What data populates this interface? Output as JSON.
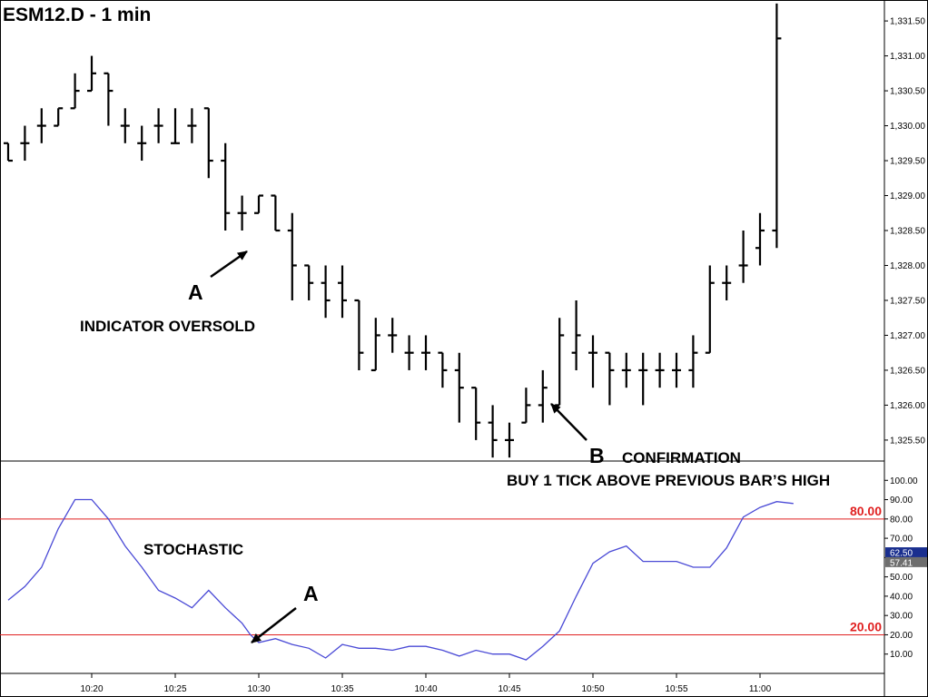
{
  "title": "ESM12.D - 1 min",
  "colors": {
    "price_bars": "#000000",
    "stochastic_line": "#4a4ad6",
    "level_lines": "#e02020",
    "tag_blue": "#1a2f8f",
    "tag_gray": "#6e6e6e"
  },
  "chart_data": [
    {
      "type": "ohlc",
      "name": "price",
      "ylim": [
        1325.2,
        1331.8
      ],
      "ticks": [
        "1,325.50",
        "1,326.00",
        "1,326.50",
        "1,327.00",
        "1,327.50",
        "1,328.00",
        "1,328.50",
        "1,329.00",
        "1,329.50",
        "1,330.00",
        "1,330.50",
        "1,331.00",
        "1,331.50"
      ],
      "tick_values": [
        1325.5,
        1326.0,
        1326.5,
        1327.0,
        1327.5,
        1328.0,
        1328.5,
        1329.0,
        1329.5,
        1330.0,
        1330.5,
        1331.0,
        1331.5
      ],
      "x_labels": [
        "10:20",
        "10:25",
        "10:30",
        "10:35",
        "10:40",
        "10:45",
        "10:50",
        "10:55",
        "11:00"
      ],
      "x_label_values": [
        20,
        25,
        30,
        35,
        40,
        45,
        50,
        55,
        60
      ],
      "bars": [
        {
          "t": 15,
          "o": 1329.75,
          "h": 1329.75,
          "l": 1329.5,
          "c": 1329.5
        },
        {
          "t": 16,
          "o": 1329.75,
          "h": 1330.0,
          "l": 1329.5,
          "c": 1329.75
        },
        {
          "t": 17,
          "o": 1330.0,
          "h": 1330.25,
          "l": 1329.75,
          "c": 1330.0
        },
        {
          "t": 18,
          "o": 1330.0,
          "h": 1330.25,
          "l": 1330.0,
          "c": 1330.25
        },
        {
          "t": 19,
          "o": 1330.25,
          "h": 1330.75,
          "l": 1330.25,
          "c": 1330.5
        },
        {
          "t": 20,
          "o": 1330.5,
          "h": 1331.0,
          "l": 1330.5,
          "c": 1330.75
        },
        {
          "t": 21,
          "o": 1330.75,
          "h": 1330.75,
          "l": 1330.0,
          "c": 1330.5
        },
        {
          "t": 22,
          "o": 1330.0,
          "h": 1330.25,
          "l": 1329.75,
          "c": 1330.0
        },
        {
          "t": 23,
          "o": 1329.75,
          "h": 1330.0,
          "l": 1329.5,
          "c": 1329.75
        },
        {
          "t": 24,
          "o": 1330.0,
          "h": 1330.25,
          "l": 1329.75,
          "c": 1330.0
        },
        {
          "t": 25,
          "o": 1329.75,
          "h": 1330.25,
          "l": 1329.75,
          "c": 1329.75
        },
        {
          "t": 26,
          "o": 1330.0,
          "h": 1330.25,
          "l": 1329.75,
          "c": 1330.0
        },
        {
          "t": 27,
          "o": 1330.25,
          "h": 1330.25,
          "l": 1329.25,
          "c": 1329.5
        },
        {
          "t": 28,
          "o": 1329.5,
          "h": 1329.75,
          "l": 1328.5,
          "c": 1328.75
        },
        {
          "t": 29,
          "o": 1328.75,
          "h": 1329.0,
          "l": 1328.5,
          "c": 1328.75
        },
        {
          "t": 30,
          "o": 1328.75,
          "h": 1329.0,
          "l": 1328.75,
          "c": 1329.0
        },
        {
          "t": 31,
          "o": 1329.0,
          "h": 1329.0,
          "l": 1328.5,
          "c": 1328.5
        },
        {
          "t": 32,
          "o": 1328.5,
          "h": 1328.75,
          "l": 1327.5,
          "c": 1328.0
        },
        {
          "t": 33,
          "o": 1328.0,
          "h": 1328.0,
          "l": 1327.5,
          "c": 1327.75
        },
        {
          "t": 34,
          "o": 1327.75,
          "h": 1328.0,
          "l": 1327.25,
          "c": 1327.5
        },
        {
          "t": 35,
          "o": 1327.75,
          "h": 1328.0,
          "l": 1327.25,
          "c": 1327.5
        },
        {
          "t": 36,
          "o": 1327.5,
          "h": 1327.5,
          "l": 1326.5,
          "c": 1326.75
        },
        {
          "t": 37,
          "o": 1326.5,
          "h": 1327.25,
          "l": 1326.5,
          "c": 1327.0
        },
        {
          "t": 38,
          "o": 1327.0,
          "h": 1327.25,
          "l": 1326.75,
          "c": 1327.0
        },
        {
          "t": 39,
          "o": 1326.75,
          "h": 1327.0,
          "l": 1326.5,
          "c": 1326.75
        },
        {
          "t": 40,
          "o": 1326.75,
          "h": 1327.0,
          "l": 1326.5,
          "c": 1326.75
        },
        {
          "t": 41,
          "o": 1326.75,
          "h": 1326.75,
          "l": 1326.25,
          "c": 1326.5
        },
        {
          "t": 42,
          "o": 1326.5,
          "h": 1326.75,
          "l": 1325.75,
          "c": 1326.25
        },
        {
          "t": 43,
          "o": 1326.25,
          "h": 1326.25,
          "l": 1325.5,
          "c": 1325.75
        },
        {
          "t": 44,
          "o": 1325.75,
          "h": 1326.0,
          "l": 1325.25,
          "c": 1325.5
        },
        {
          "t": 45,
          "o": 1325.5,
          "h": 1325.75,
          "l": 1325.25,
          "c": 1325.5
        },
        {
          "t": 46,
          "o": 1325.75,
          "h": 1326.25,
          "l": 1325.75,
          "c": 1326.0
        },
        {
          "t": 47,
          "o": 1326.0,
          "h": 1326.5,
          "l": 1325.75,
          "c": 1326.25
        },
        {
          "t": 48,
          "o": 1326.0,
          "h": 1327.25,
          "l": 1326.0,
          "c": 1327.0
        },
        {
          "t": 49,
          "o": 1326.75,
          "h": 1327.5,
          "l": 1326.5,
          "c": 1327.0
        },
        {
          "t": 50,
          "o": 1326.75,
          "h": 1327.0,
          "l": 1326.25,
          "c": 1326.75
        },
        {
          "t": 51,
          "o": 1326.75,
          "h": 1326.75,
          "l": 1326.0,
          "c": 1326.5
        },
        {
          "t": 52,
          "o": 1326.5,
          "h": 1326.75,
          "l": 1326.25,
          "c": 1326.5
        },
        {
          "t": 53,
          "o": 1326.5,
          "h": 1326.75,
          "l": 1326.0,
          "c": 1326.5
        },
        {
          "t": 54,
          "o": 1326.5,
          "h": 1326.75,
          "l": 1326.25,
          "c": 1326.5
        },
        {
          "t": 55,
          "o": 1326.5,
          "h": 1326.75,
          "l": 1326.25,
          "c": 1326.5
        },
        {
          "t": 56,
          "o": 1326.5,
          "h": 1327.0,
          "l": 1326.25,
          "c": 1326.75
        },
        {
          "t": 57,
          "o": 1326.75,
          "h": 1328.0,
          "l": 1326.75,
          "c": 1327.75
        },
        {
          "t": 58,
          "o": 1327.75,
          "h": 1328.0,
          "l": 1327.5,
          "c": 1327.75
        },
        {
          "t": 59,
          "o": 1328.0,
          "h": 1328.5,
          "l": 1327.75,
          "c": 1328.0
        },
        {
          "t": 60,
          "o": 1328.25,
          "h": 1328.75,
          "l": 1328.0,
          "c": 1328.5
        },
        {
          "t": 61,
          "o": 1328.5,
          "h": 1331.75,
          "l": 1328.25,
          "c": 1331.25
        }
      ]
    },
    {
      "type": "line",
      "name": "STOCHASTIC",
      "ylim": [
        0,
        110
      ],
      "ticks": [
        "10.00",
        "20.00",
        "30.00",
        "40.00",
        "50.00",
        "60.00",
        "70.00",
        "80.00",
        "90.00",
        "100.00"
      ],
      "tick_values": [
        10,
        20,
        30,
        40,
        50,
        60,
        70,
        80,
        90,
        100
      ],
      "levels": [
        {
          "value": 80,
          "label": "80.00"
        },
        {
          "value": 20,
          "label": "20.00"
        }
      ],
      "tags": [
        {
          "label": "62.50",
          "value": 62.5
        },
        {
          "label": "57.41",
          "value": 57.41
        }
      ],
      "points": [
        [
          15,
          38
        ],
        [
          16,
          45
        ],
        [
          17,
          55
        ],
        [
          18,
          75
        ],
        [
          19,
          90
        ],
        [
          20,
          90
        ],
        [
          21,
          80
        ],
        [
          22,
          66
        ],
        [
          23,
          55
        ],
        [
          24,
          43
        ],
        [
          25,
          39
        ],
        [
          26,
          34
        ],
        [
          27,
          43
        ],
        [
          28,
          34
        ],
        [
          29,
          26
        ],
        [
          29.5,
          20
        ],
        [
          30,
          16
        ],
        [
          31,
          18
        ],
        [
          32,
          15
        ],
        [
          33,
          13
        ],
        [
          34,
          8
        ],
        [
          35,
          15
        ],
        [
          36,
          13
        ],
        [
          37,
          13
        ],
        [
          38,
          12
        ],
        [
          39,
          14
        ],
        [
          40,
          14
        ],
        [
          41,
          12
        ],
        [
          42,
          9
        ],
        [
          43,
          12
        ],
        [
          44,
          10
        ],
        [
          45,
          10
        ],
        [
          46,
          7
        ],
        [
          47,
          14
        ],
        [
          48,
          22
        ],
        [
          49,
          40
        ],
        [
          50,
          57
        ],
        [
          51,
          63
        ],
        [
          52,
          66
        ],
        [
          53,
          58
        ],
        [
          54,
          58
        ],
        [
          55,
          58
        ],
        [
          56,
          55
        ],
        [
          57,
          55
        ],
        [
          58,
          65
        ],
        [
          59,
          81
        ],
        [
          60,
          86
        ],
        [
          61,
          89
        ],
        [
          62,
          88
        ]
      ]
    }
  ],
  "annotations": {
    "a_price": "A",
    "oversold": "INDICATOR OVERSOLD",
    "b": "B",
    "confirmation": "CONFIRMATION",
    "buy": "BUY 1 TICK ABOVE PREVIOUS BAR’S HIGH",
    "stochastic": "STOCHASTIC",
    "a_stoch": "A"
  }
}
